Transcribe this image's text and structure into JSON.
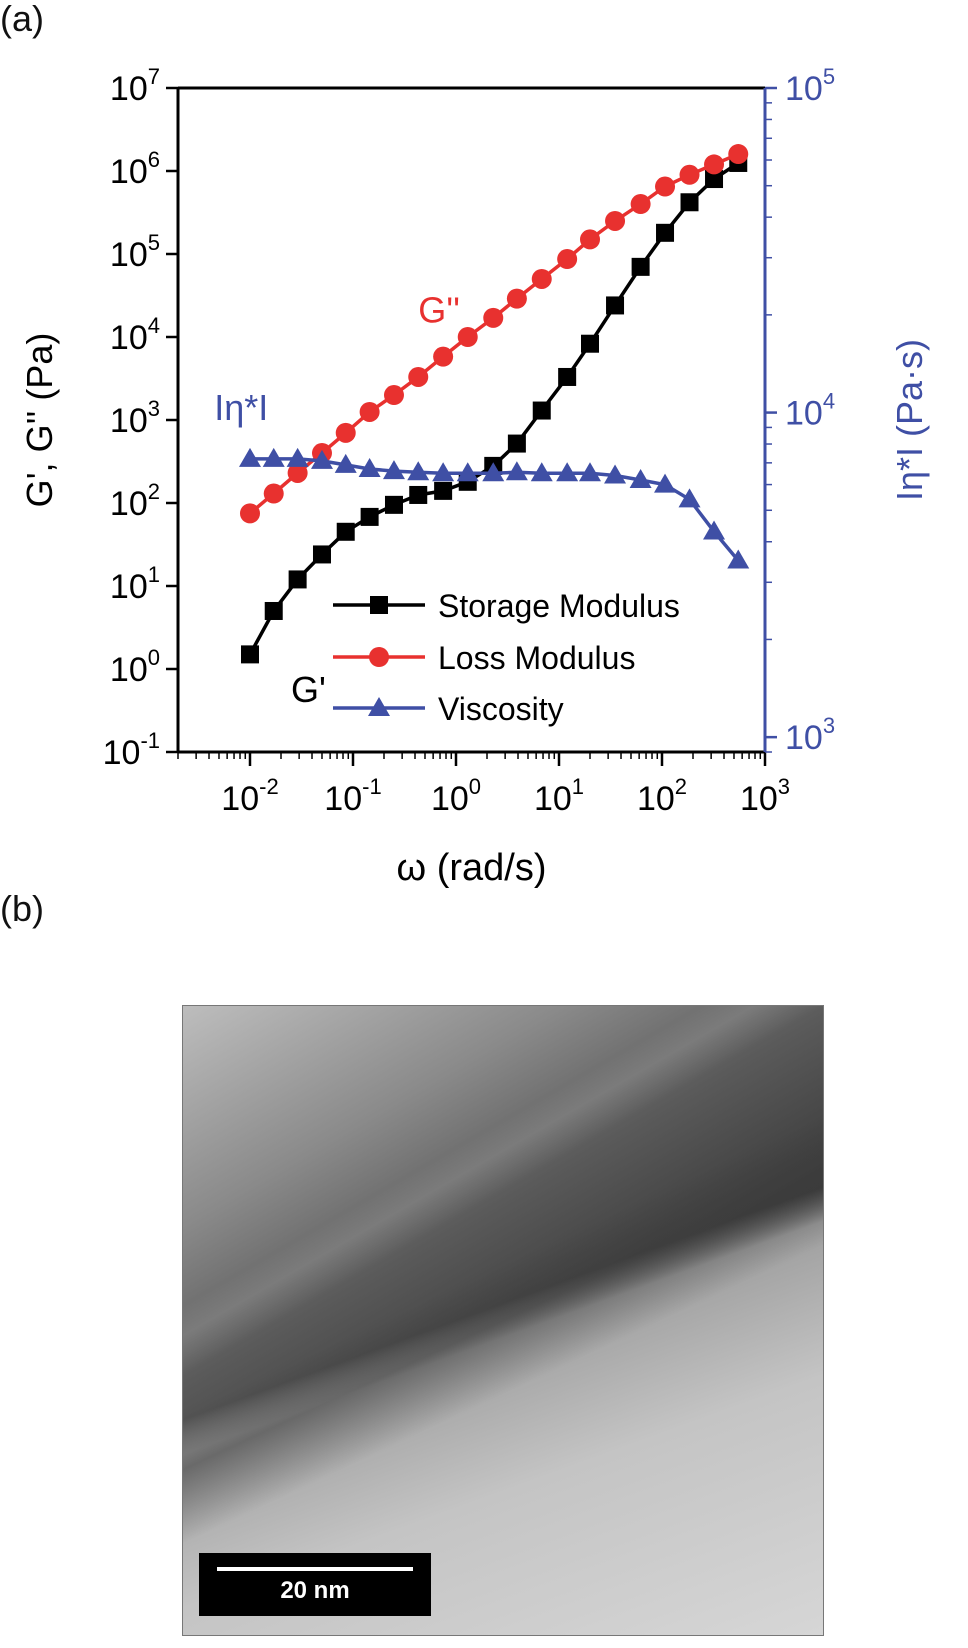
{
  "panel_a_label": "(a)",
  "panel_b_label": "(b)",
  "scale_bar_label": "20 nm",
  "chart_data": {
    "type": "scatter",
    "xlabel": "ω (rad/s)",
    "ylabel": "G', G'' (Pa)",
    "y2label": "Iη*I (Pa·s)",
    "x_scale": "log",
    "y_scale": "log",
    "y2_scale": "log",
    "xlim": [
      0.002,
      1000
    ],
    "ylim": [
      0.1,
      10000000
    ],
    "y2lim": [
      900,
      100000
    ],
    "x_ticks": [
      {
        "value": 0.01,
        "base": "10",
        "exp": "-2"
      },
      {
        "value": 0.1,
        "base": "10",
        "exp": "-1"
      },
      {
        "value": 1,
        "base": "10",
        "exp": "0"
      },
      {
        "value": 10,
        "base": "10",
        "exp": "1"
      },
      {
        "value": 100,
        "base": "10",
        "exp": "2"
      },
      {
        "value": 1000,
        "base": "10",
        "exp": "3"
      }
    ],
    "y_ticks": [
      {
        "value": 0.1,
        "base": "10",
        "exp": "-1"
      },
      {
        "value": 1,
        "base": "10",
        "exp": "0"
      },
      {
        "value": 10,
        "base": "10",
        "exp": "1"
      },
      {
        "value": 100,
        "base": "10",
        "exp": "2"
      },
      {
        "value": 1000,
        "base": "10",
        "exp": "3"
      },
      {
        "value": 10000,
        "base": "10",
        "exp": "4"
      },
      {
        "value": 100000,
        "base": "10",
        "exp": "5"
      },
      {
        "value": 1000000,
        "base": "10",
        "exp": "6"
      },
      {
        "value": 10000000,
        "base": "10",
        "exp": "7"
      }
    ],
    "y2_ticks": [
      {
        "value": 1000,
        "base": "10",
        "exp": "3"
      },
      {
        "value": 10000,
        "base": "10",
        "exp": "4"
      },
      {
        "value": 100000,
        "base": "10",
        "exp": "5"
      }
    ],
    "legend_position": "lower-right",
    "series": [
      {
        "name": "Storage Modulus",
        "color": "#000000",
        "marker": "square",
        "axis": "left",
        "x": [
          0.01,
          0.017,
          0.029,
          0.05,
          0.085,
          0.145,
          0.25,
          0.43,
          0.75,
          1.3,
          2.3,
          3.9,
          6.8,
          12,
          20,
          35,
          62,
          107,
          185,
          320,
          550
        ],
        "y": [
          1.5,
          5,
          12,
          24,
          45,
          68,
          95,
          125,
          140,
          180,
          280,
          520,
          1300,
          3300,
          8300,
          24000,
          70000,
          180000,
          420000,
          800000,
          1250000
        ]
      },
      {
        "name": "Loss Modulus",
        "color": "#e8312f",
        "marker": "circle",
        "axis": "left",
        "x": [
          0.01,
          0.017,
          0.029,
          0.05,
          0.085,
          0.145,
          0.25,
          0.43,
          0.75,
          1.3,
          2.3,
          3.9,
          6.8,
          12,
          20,
          35,
          62,
          107,
          185,
          320,
          550
        ],
        "y": [
          75,
          130,
          230,
          400,
          700,
          1250,
          2000,
          3300,
          5800,
          10000,
          17000,
          29000,
          50000,
          87000,
          150000,
          250000,
          400000,
          650000,
          900000,
          1200000,
          1600000
        ]
      },
      {
        "name": "Viscosity",
        "color": "#3f4fa5",
        "marker": "triangle",
        "axis": "right",
        "x": [
          0.01,
          0.017,
          0.029,
          0.05,
          0.085,
          0.145,
          0.25,
          0.43,
          0.75,
          1.3,
          2.3,
          3.9,
          6.8,
          12,
          20,
          35,
          62,
          107,
          185,
          320,
          550
        ],
        "y": [
          7200,
          7200,
          7200,
          7100,
          6900,
          6700,
          6600,
          6550,
          6500,
          6500,
          6500,
          6550,
          6500,
          6500,
          6500,
          6400,
          6200,
          6000,
          5400,
          4300,
          3500
        ]
      }
    ],
    "annotations": [
      {
        "text": "G''",
        "color": "#e8312f",
        "x": 0.43,
        "y": 15000
      },
      {
        "text": "Iη*I",
        "color": "#3f4fa5",
        "x": 0.0045,
        "y": 1000
      },
      {
        "text": "G'",
        "color": "#000000",
        "x": 0.025,
        "y": 0.4
      }
    ]
  }
}
